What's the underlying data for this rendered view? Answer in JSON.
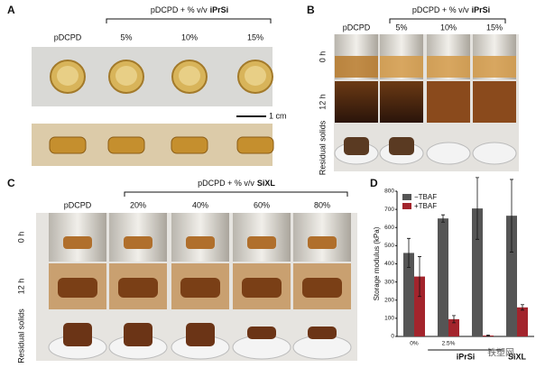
{
  "panel_a": {
    "label": "A",
    "header": "pDCPD + % v/v",
    "header_bold": "iPrSi",
    "columns": [
      "pDCPD",
      "5%",
      "10%",
      "15%"
    ],
    "scale_bar": "1 cm"
  },
  "panel_b": {
    "label": "B",
    "header": "pDCPD + % v/v",
    "header_bold": "iPrSi",
    "columns": [
      "pDCPD",
      "5%",
      "10%",
      "15%"
    ],
    "rows": [
      "0 h",
      "12 h",
      "Residual solids"
    ]
  },
  "panel_c": {
    "label": "C",
    "header": "pDCPD + % v/v",
    "header_bold": "SiXL",
    "columns": [
      "pDCPD",
      "20%",
      "40%",
      "60%",
      "80%"
    ],
    "rows": [
      "0 h",
      "12 h",
      "Residual solids"
    ]
  },
  "panel_d_label": "D",
  "watermark": "铁塑网",
  "chart_data": {
    "type": "bar",
    "ylabel": "Storage modulus (kPa)",
    "categories": [
      "0%",
      "2.5%",
      null,
      null
    ],
    "group_labels": [
      "iPrSi",
      "SiXL"
    ],
    "series": [
      {
        "name": "−TBAF",
        "color": "#555555",
        "values": [
          460,
          650,
          705,
          665
        ],
        "errors": [
          80,
          20,
          170,
          200
        ]
      },
      {
        "name": "+TBAF",
        "color": "#a3242c",
        "values": [
          330,
          95,
          5,
          160
        ],
        "errors": [
          110,
          20,
          3,
          15
        ]
      }
    ],
    "ylim": [
      0,
      800
    ],
    "yticks": [
      0,
      100,
      200,
      300,
      400,
      500,
      600,
      700,
      800
    ],
    "legend": "upper left"
  }
}
